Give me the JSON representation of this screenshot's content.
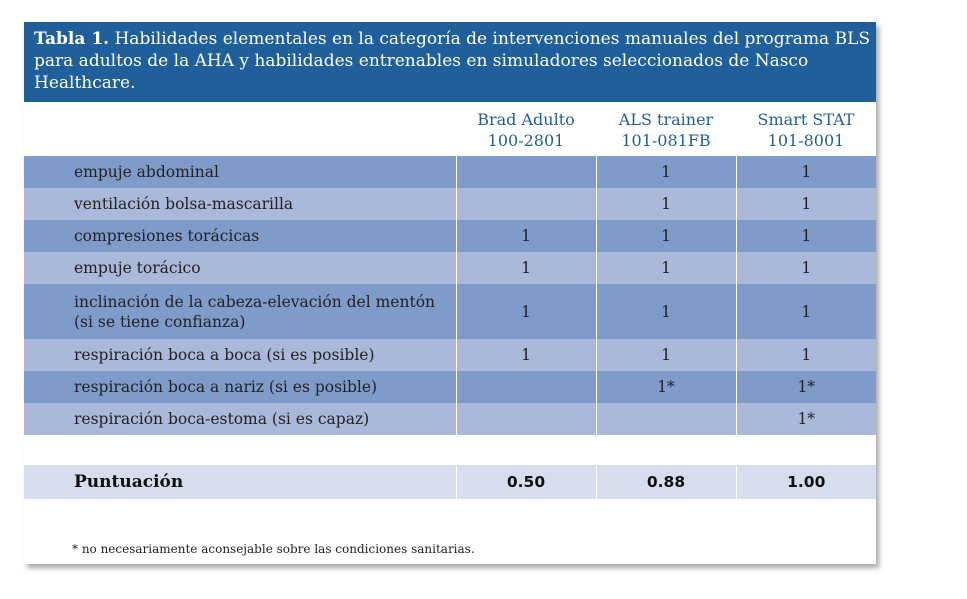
{
  "title": {
    "bold": "Tabla 1.",
    "text": " Habilidades elementales en la categoría de intervenciones manuales del programa BLS para adultos de la AHA y habilidades entrenables en simuladores seleccionados de Nasco Healthcare."
  },
  "columns": [
    {
      "line1": "Brad Adulto",
      "line2": "100-2801"
    },
    {
      "line1": "ALS trainer",
      "line2": "101-081FB"
    },
    {
      "line1": "Smart STAT",
      "line2": "101-8001"
    }
  ],
  "rows": [
    {
      "label": "empuje abdominal",
      "values": [
        "",
        "1",
        "1"
      ]
    },
    {
      "label": "ventilación bolsa-mascarilla",
      "values": [
        "",
        "1",
        "1"
      ]
    },
    {
      "label": "compresiones torácicas",
      "values": [
        "1",
        "1",
        "1"
      ]
    },
    {
      "label": "empuje torácico",
      "values": [
        "1",
        "1",
        "1"
      ]
    },
    {
      "label": "inclinación de la cabeza-elevación del mentón (si se tiene confianza)",
      "values": [
        "1",
        "1",
        "1"
      ]
    },
    {
      "label": "respiración boca a boca (si es posible)",
      "values": [
        "1",
        "1",
        "1"
      ]
    },
    {
      "label": "respiración boca a nariz (si es posible)",
      "values": [
        "",
        "1*",
        "1*"
      ]
    },
    {
      "label": "respiración boca-estoma (si es capaz)",
      "values": [
        "",
        "",
        "1*"
      ]
    }
  ],
  "score": {
    "label": "Puntuación",
    "values": [
      "0.50",
      "0.88",
      "1.00"
    ]
  },
  "footnote": "* no necesariamente aconsejable sobre las condiciones sanitarias.",
  "colors": {
    "header_bar": "#1f5f9b",
    "row_dark": "#7f9bc9",
    "row_light": "#aab8d9",
    "score_row": "#d6ddec",
    "header_text": "#1f5f9b"
  }
}
